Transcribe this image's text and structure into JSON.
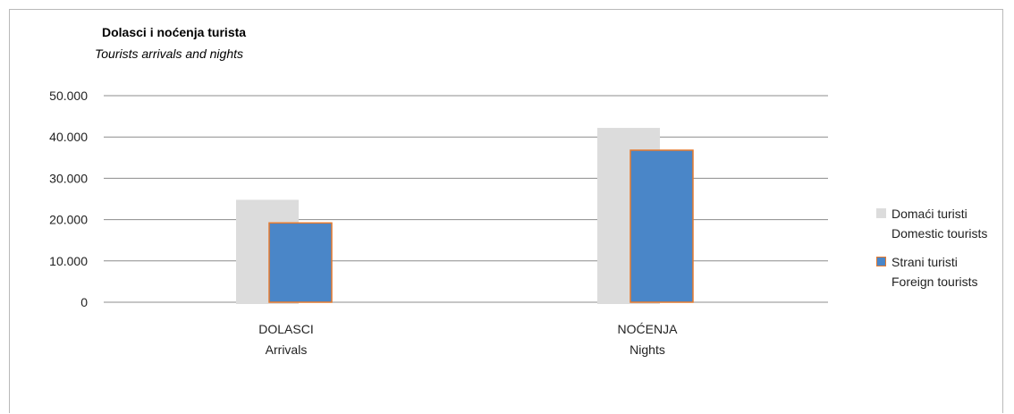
{
  "chart_data": {
    "type": "bar",
    "title": "Dolasci i noćenja turista",
    "subtitle": "Tourists arrivals and nights",
    "categories": [
      {
        "line1": "DOLASCI",
        "line2": "Arrivals"
      },
      {
        "line1": "NOĆENJA",
        "line2": "Nights"
      }
    ],
    "series": [
      {
        "name_line1": "Domaći turisti",
        "name_line2": "Domestic tourists",
        "values": [
          24800,
          42200
        ],
        "color": "#dcdcdc",
        "border": "#dcdcdc"
      },
      {
        "name_line1": "Strani turisti",
        "name_line2": "Foreign tourists",
        "values": [
          19200,
          36800
        ],
        "color": "#4a86c8",
        "border": "#e57a2e"
      }
    ],
    "ylim": [
      0,
      50000
    ],
    "yticks": [
      "0",
      "10.000",
      "20.000",
      "30.000",
      "40.000",
      "50.000"
    ],
    "grid": true,
    "legend_position": "right"
  }
}
